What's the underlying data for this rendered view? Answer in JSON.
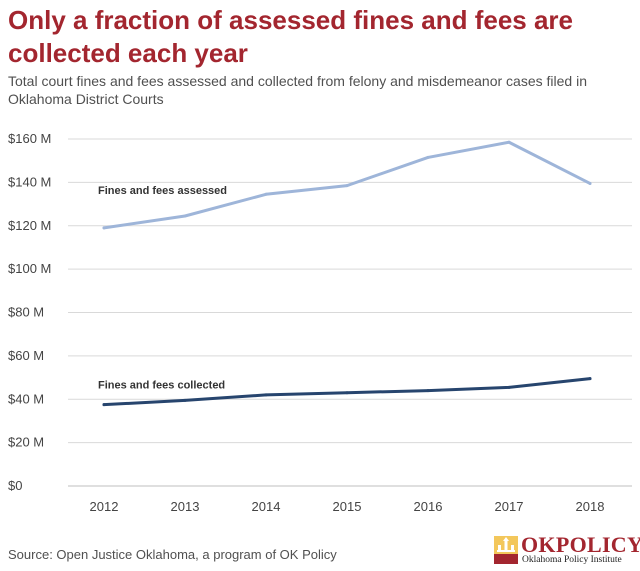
{
  "title": "Only a fraction of assessed fines and fees are collected each year",
  "subtitle": "Total court fines and fees assessed and collected from felony and misdemeanor cases filed in Oklahoma District Courts",
  "source": "Source: Open Justice Oklahoma, a program of OK Policy",
  "logo": {
    "name": "OKPOLICY",
    "tagline": "Oklahoma Policy Institute",
    "icon": "ok-policy-logo-icon"
  },
  "colors": {
    "title": "#a3262f",
    "assessed": "#9eb5d9",
    "collected": "#27456e",
    "grid": "#d9d9d9"
  },
  "chart_data": {
    "type": "line",
    "title": "Only a fraction of assessed fines and fees are collected each year",
    "xlabel": "",
    "ylabel": "",
    "categories": [
      "2012",
      "2013",
      "2014",
      "2015",
      "2016",
      "2017",
      "2018"
    ],
    "series": [
      {
        "name": "Fines and fees assessed",
        "values": [
          119,
          124.5,
          134.5,
          138.5,
          151.5,
          158.5,
          139.5
        ]
      },
      {
        "name": "Fines and fees collected",
        "values": [
          37.5,
          39.5,
          42,
          43,
          44,
          45.5,
          49.5
        ]
      }
    ],
    "ylim": [
      0,
      160
    ],
    "yticks": [
      0,
      20,
      40,
      60,
      80,
      100,
      120,
      140,
      160
    ],
    "ytick_labels": [
      "$0",
      "$20 M",
      "$40 M",
      "$60 M",
      "$80 M",
      "$100 M",
      "$120 M",
      "$140 M",
      "$160 M"
    ],
    "grid": true
  }
}
